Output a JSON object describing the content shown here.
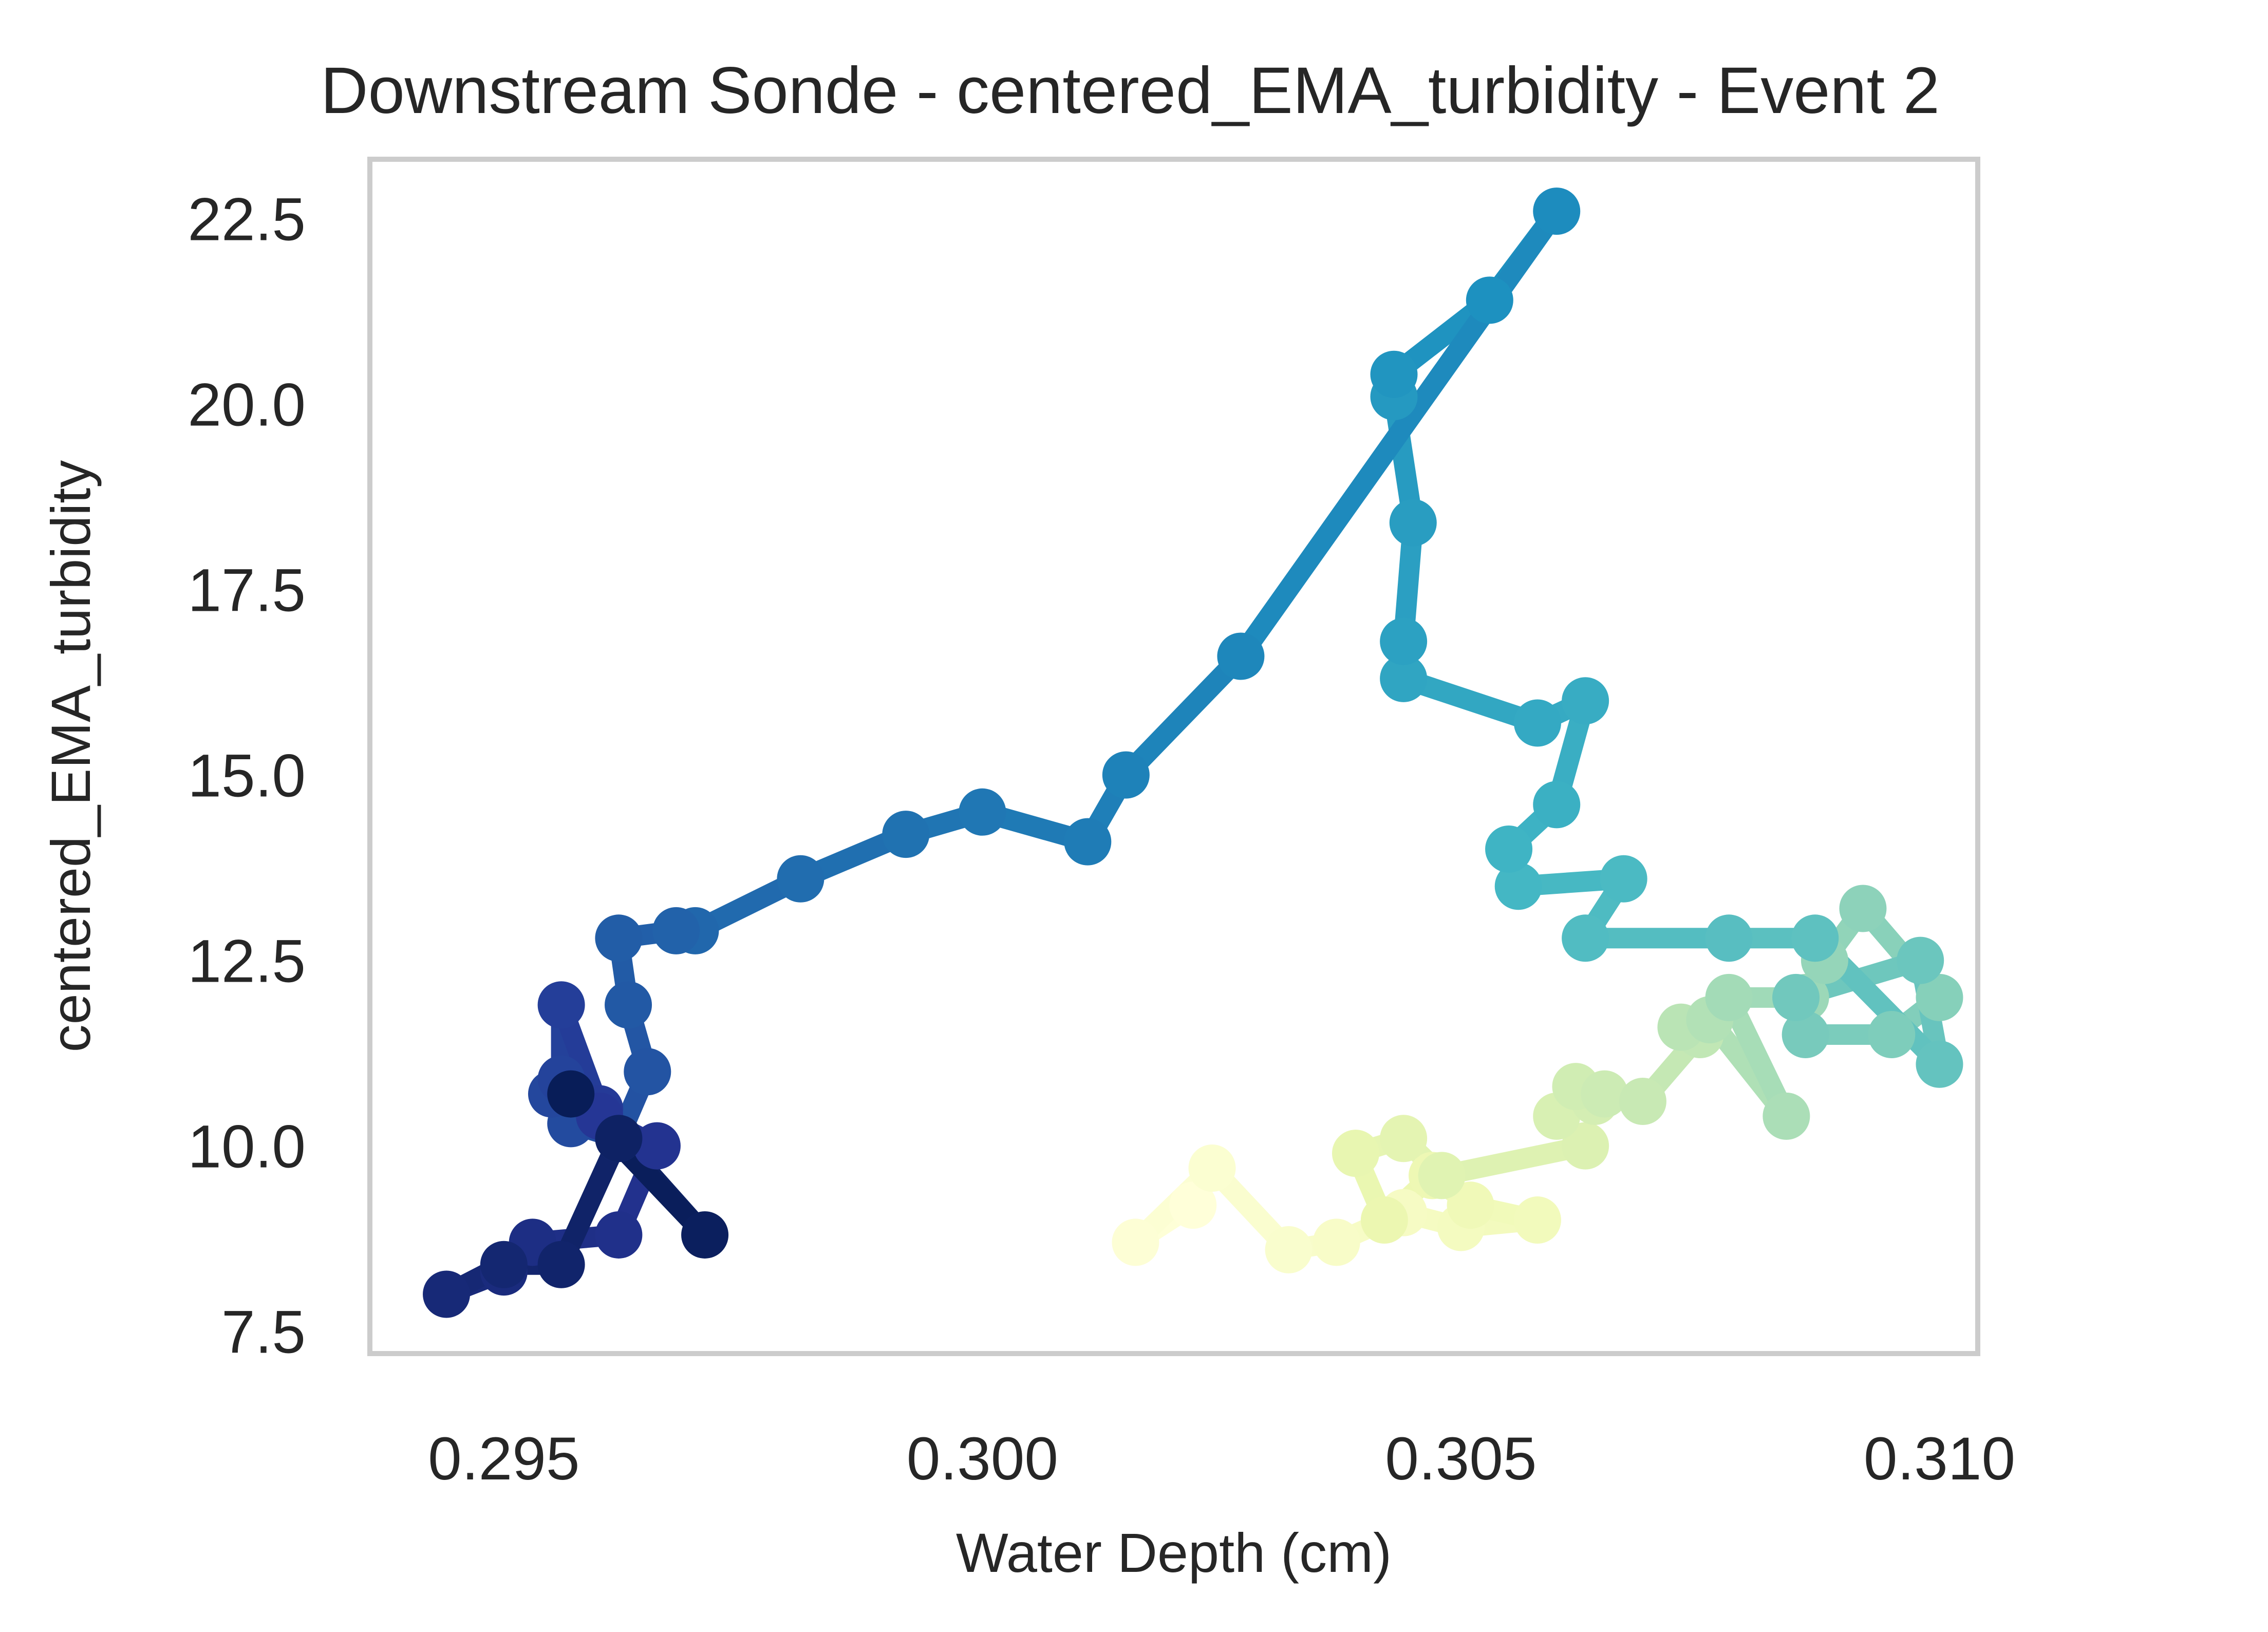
{
  "chart_data": {
    "type": "line",
    "title": "Downstream Sonde - centered_EMA_turbidity - Event 2",
    "xlabel": "Water Depth (cm)",
    "ylabel": "centered_EMA_turbidity",
    "xlim": [
      0.2936,
      0.3104
    ],
    "ylim": [
      7.2,
      23.3
    ],
    "grid": false,
    "legend": "none",
    "colormap": "YlGnBu",
    "color_order": "reversed along time (first point lightest, last point darkest)",
    "x_ticks": [
      {
        "value": 0.295,
        "label": "0.295"
      },
      {
        "value": 0.3,
        "label": "0.300"
      },
      {
        "value": 0.305,
        "label": "0.305"
      },
      {
        "value": 0.31,
        "label": "0.310"
      }
    ],
    "y_ticks": [
      {
        "value": 7.5,
        "label": "7.5"
      },
      {
        "value": 10.0,
        "label": "10.0"
      },
      {
        "value": 12.5,
        "label": "12.5"
      },
      {
        "value": 15.0,
        "label": "15.0"
      },
      {
        "value": 17.5,
        "label": "17.5"
      },
      {
        "value": 20.0,
        "label": "20.0"
      },
      {
        "value": 22.5,
        "label": "22.5"
      }
    ],
    "series": [
      {
        "x": [
          0.3022,
          0.3016,
          0.3024,
          0.3032,
          0.3037,
          0.3044,
          0.305,
          0.3058,
          0.3051,
          0.3047,
          0.3042,
          0.3039,
          0.3044,
          0.3048,
          0.3063,
          0.306,
          0.3064,
          0.3062,
          0.3065,
          0.3069,
          0.3075,
          0.3073,
          0.3076,
          0.3084,
          0.3078,
          0.3086,
          0.3088,
          0.3092,
          0.31,
          0.3095,
          0.3086,
          0.3085,
          0.3098,
          0.31,
          0.3087,
          0.3078,
          0.3063,
          0.3067,
          0.3056,
          0.3055,
          0.306,
          0.3063,
          0.3058,
          0.3044,
          0.3044,
          0.3045,
          0.3043,
          0.3043,
          0.3053,
          0.306,
          0.3027,
          0.3015,
          0.3011,
          0.3,
          0.2992,
          0.2981,
          0.297,
          0.2968,
          0.2962,
          0.2963,
          0.2965,
          0.2962,
          0.2957,
          0.2955,
          0.2956,
          0.2956,
          0.296,
          0.296,
          0.2966,
          0.2962,
          0.2953,
          0.295,
          0.2944,
          0.295,
          0.2956,
          0.2962,
          0.2971,
          0.2957
        ],
        "y": [
          9.2,
          8.7,
          9.7,
          8.6,
          8.7,
          9.1,
          8.9,
          9.0,
          9.2,
          9.6,
          9.0,
          9.9,
          10.1,
          9.6,
          10.0,
          10.4,
          10.6,
          10.8,
          10.7,
          10.6,
          11.5,
          11.6,
          11.7,
          10.4,
          12.0,
          12.0,
          12.5,
          13.2,
          12.0,
          11.5,
          11.5,
          12.0,
          12.5,
          11.1,
          12.8,
          12.8,
          12.8,
          13.6,
          13.5,
          14.0,
          14.6,
          16.0,
          15.7,
          16.3,
          16.8,
          18.4,
          20.1,
          20.4,
          21.4,
          22.6,
          16.6,
          15.0,
          14.1,
          14.5,
          14.2,
          13.6,
          12.9,
          12.9,
          12.8,
          11.9,
          11.0,
          10.1,
          10.3,
          10.7,
          10.9,
          11.9,
          10.5,
          10.4,
          10.0,
          8.8,
          8.7,
          8.3,
          8.0,
          8.4,
          8.4,
          10.1,
          8.8,
          10.7
        ]
      }
    ]
  }
}
